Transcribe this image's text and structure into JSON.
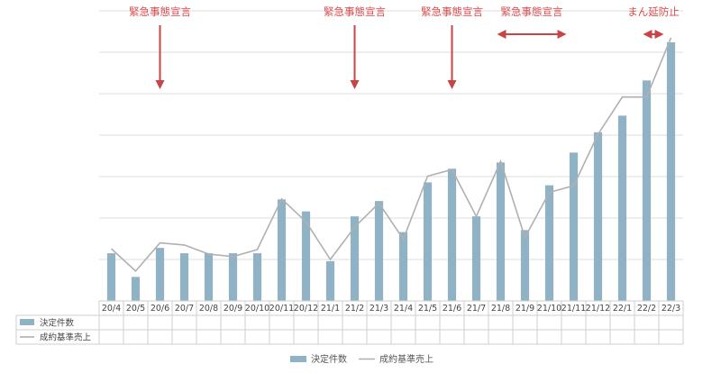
{
  "chart_data": {
    "type": "bar",
    "categories": [
      "20/4",
      "20/5",
      "20/6",
      "20/7",
      "20/8",
      "20/9",
      "20/10",
      "20/11",
      "20/12",
      "21/1",
      "21/2",
      "21/3",
      "21/4",
      "21/5",
      "21/6",
      "21/7",
      "21/8",
      "21/9",
      "21/10",
      "21/11",
      "21/12",
      "22/1",
      "22/2",
      "22/3"
    ],
    "series": [
      {
        "name": "決定件数",
        "kind": "bar",
        "color": "#8fb3c4",
        "values": [
          11.5,
          5.8,
          12.8,
          11.5,
          11.5,
          11.5,
          11.5,
          24.5,
          21.6,
          9.6,
          20.4,
          24.1,
          16.6,
          28.6,
          31.9,
          20.4,
          33.4,
          17.1,
          27.9,
          35.8,
          40.7,
          44.7,
          53.2,
          62.4
        ]
      },
      {
        "name": "成約基準売上",
        "kind": "line",
        "color": "#b0b0b0",
        "values": [
          12.6,
          7.2,
          14.0,
          13.5,
          11.3,
          10.7,
          12.4,
          24.6,
          19.1,
          10.0,
          17.8,
          23.6,
          14.9,
          30.1,
          31.7,
          20.4,
          33.7,
          15.3,
          26.2,
          27.8,
          40.2,
          49.2,
          49.2,
          63.5
        ]
      }
    ],
    "ylim": [
      0,
      70
    ],
    "grid": true,
    "legend": "bottom",
    "data_table": true,
    "annotations": [
      {
        "label": "緊急事態宣言",
        "kind": "arrow-down",
        "at": "20/6"
      },
      {
        "label": "緊急事態宣言",
        "kind": "arrow-down",
        "at": "21/2"
      },
      {
        "label": "緊急事態宣言",
        "kind": "arrow-down",
        "at": "21/6"
      },
      {
        "label": "緊急事態宣言",
        "kind": "range",
        "from": "21/8",
        "to": "21/11"
      },
      {
        "label": "まん延防止",
        "kind": "range",
        "from": "22/2",
        "to": "22/3"
      }
    ]
  }
}
